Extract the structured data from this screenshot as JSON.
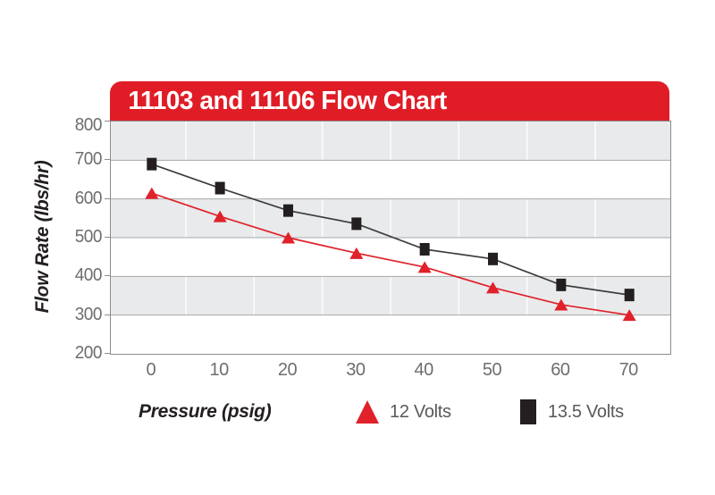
{
  "chart_data": {
    "type": "line",
    "title": "11103 and 11106 Flow Chart",
    "xlabel": "Pressure (psig)",
    "ylabel": "Flow Rate (lbs/hr)",
    "x": [
      0,
      10,
      20,
      30,
      40,
      50,
      60,
      70
    ],
    "series": [
      {
        "name": "13.5 Volts",
        "marker": "square",
        "color": "#231f20",
        "line_color": "#3d3d3f",
        "values": [
          690,
          628,
          570,
          536,
          470,
          445,
          378,
          352
        ]
      },
      {
        "name": "12 Volts",
        "marker": "triangle",
        "color": "#e0212a",
        "line_color": "#e0212a",
        "values": [
          615,
          555,
          500,
          460,
          424,
          371,
          327,
          300
        ]
      }
    ],
    "xlim": [
      -6,
      76
    ],
    "ylim": [
      200,
      800
    ],
    "x_ticks": [
      "0",
      "10",
      "20",
      "30",
      "40",
      "50",
      "60",
      "70"
    ],
    "y_ticks": [
      "200",
      "300",
      "400",
      "500",
      "600",
      "700",
      "800"
    ],
    "grid": "horizontal gray lines every 100; faint white vertical lines midway between x ticks; alternating gray bands (800-700, 600-500, 400-300)",
    "legend_position": "bottom"
  },
  "legend": {
    "items": [
      {
        "label": "12 Volts",
        "marker": "triangle",
        "color": "#e0212a"
      },
      {
        "label": "13.5 Volts",
        "marker": "square",
        "color": "#231f20"
      }
    ]
  },
  "colors": {
    "banner_red": "#e01d26",
    "series_red": "#e0212a",
    "series_black": "#231f20",
    "band_gray": "#e9eaeb",
    "gridline_gray": "#a6a8ab",
    "border_gray": "#8a8c8f",
    "tick_label_gray": "#6d6e70",
    "legend_text_gray": "#58595b",
    "title_text": "#ffffff"
  }
}
